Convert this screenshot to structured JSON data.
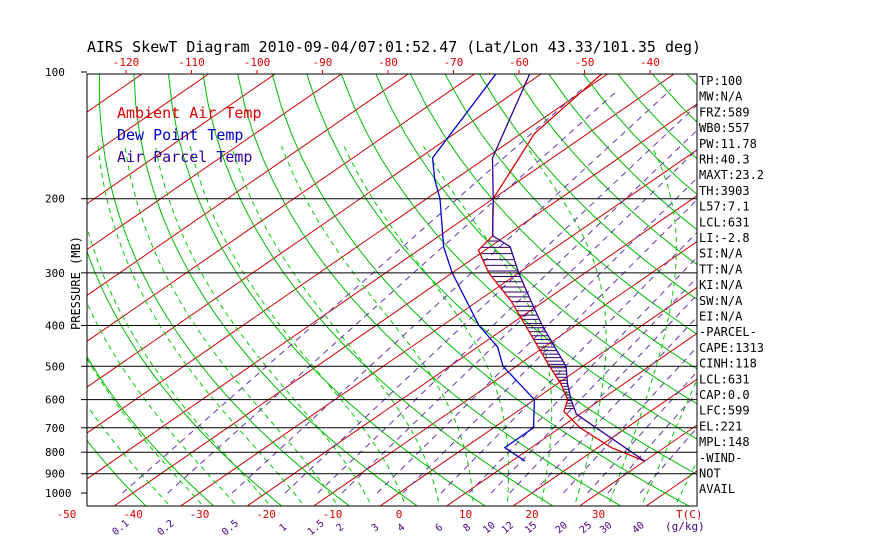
{
  "chart_data": {
    "type": "skew-t",
    "title": "AIRS SkewT Diagram 2010-09-04/07:01:52.47 (Lat/Lon 43.33/101.35 deg)",
    "ylabel": "PRESSURE (MB)",
    "top_axis_ticks": [
      "-120",
      "-110",
      "-100",
      "-90",
      "-80",
      "-70",
      "-60",
      "-50",
      "-40"
    ],
    "bottom_temp_ticks": [
      "-50",
      "-40",
      "-30",
      "-20",
      "-10",
      "0",
      "10",
      "20",
      "30"
    ],
    "bottom_temp_unit": "T(C)",
    "mixing_ratio_ticks": [
      "0.1",
      "0.2",
      "0.5",
      "1",
      "1.5",
      "2",
      "3",
      "4",
      "6",
      "8",
      "10",
      "12",
      "15",
      "20",
      "25",
      "30",
      "40"
    ],
    "mixing_ratio_unit": "(g/kg)",
    "pressure_ticks": [
      100,
      200,
      300,
      400,
      500,
      600,
      700,
      800,
      900,
      1000
    ],
    "isobars": [
      200,
      300,
      400,
      500,
      600,
      700,
      800,
      900
    ],
    "legend": [
      {
        "label": "Ambient Air Temp",
        "color": "#dd0000"
      },
      {
        "label": "Dew Point Temp",
        "color": "#0000cc"
      },
      {
        "label": "Air Parcel Temp",
        "color": "#330099"
      }
    ],
    "series": [
      {
        "name": "Ambient Air Temp",
        "color": "#dd0000",
        "points": [
          {
            "p": 840,
            "t": 30.0
          },
          {
            "p": 780,
            "t": 22.0
          },
          {
            "p": 700,
            "t": 13.0
          },
          {
            "p": 640,
            "t": 7.0
          },
          {
            "p": 600,
            "t": 5.0
          },
          {
            "p": 550,
            "t": 0.5
          },
          {
            "p": 500,
            "t": -5.0
          },
          {
            "p": 400,
            "t": -17.5
          },
          {
            "p": 350,
            "t": -25.0
          },
          {
            "p": 300,
            "t": -34.5
          },
          {
            "p": 265,
            "t": -41.0
          },
          {
            "p": 245,
            "t": -42.0
          },
          {
            "p": 200,
            "t": -50.0
          },
          {
            "p": 160,
            "t": -55.0
          },
          {
            "p": 140,
            "t": -58.0
          },
          {
            "p": 125,
            "t": -59.0
          },
          {
            "p": 100,
            "t": -61.0
          }
        ]
      },
      {
        "name": "Dew Point Temp",
        "color": "#0000cc",
        "points": [
          {
            "p": 840,
            "t": 12.0
          },
          {
            "p": 780,
            "t": 6.0
          },
          {
            "p": 700,
            "t": 6.0
          },
          {
            "p": 600,
            "t": 0.0
          },
          {
            "p": 500,
            "t": -12.0
          },
          {
            "p": 450,
            "t": -17.0
          },
          {
            "p": 400,
            "t": -24.5
          },
          {
            "p": 300,
            "t": -40.0
          },
          {
            "p": 260,
            "t": -47.0
          },
          {
            "p": 200,
            "t": -58.0
          },
          {
            "p": 180,
            "t": -63.0
          },
          {
            "p": 160,
            "t": -68.0
          },
          {
            "p": 100,
            "t": -77.0
          }
        ]
      },
      {
        "name": "Air Parcel Temp",
        "color": "#330099",
        "points": [
          {
            "p": 840,
            "t": 30.0
          },
          {
            "p": 760,
            "t": 22.0
          },
          {
            "p": 650,
            "t": 9.5
          },
          {
            "p": 600,
            "t": 5.5
          },
          {
            "p": 550,
            "t": 1.5
          },
          {
            "p": 500,
            "t": -2.5
          },
          {
            "p": 400,
            "t": -15.0
          },
          {
            "p": 350,
            "t": -22.0
          },
          {
            "p": 300,
            "t": -30.0
          },
          {
            "p": 260,
            "t": -37.0
          },
          {
            "p": 245,
            "t": -42.0
          },
          {
            "p": 200,
            "t": -50.0
          },
          {
            "p": 160,
            "t": -59.0
          },
          {
            "p": 100,
            "t": -72.0
          }
        ]
      }
    ],
    "indices": [
      "TP:100",
      "MW:N/A",
      "FRZ:589",
      "WB0:557",
      "PW:11.78",
      "RH:40.3",
      "MAXT:23.2",
      "TH:3903",
      "L57:7.1",
      "LCL:631",
      "LI:-2.8",
      "SI:N/A",
      "TT:N/A",
      "KI:N/A",
      "SW:N/A",
      "EI:N/A",
      "-PARCEL-",
      "CAPE:1313",
      "CINH:118",
      "LCL:631",
      "CAP:0.0",
      "LFC:599",
      "EL:221",
      "MPL:148",
      "-WIND-",
      "NOT",
      "AVAIL"
    ],
    "colors": {
      "isotherm": "#cc0000",
      "dry_adiabat": "#00bb00",
      "moist_adiabat": "#00cc00",
      "mixing_ratio": "#6633aa",
      "isobar": "#000000",
      "title": "#000000",
      "top_tick": "#dd0000",
      "bottom_tick": "#dd0000",
      "mixing_tick": "#440088"
    }
  }
}
